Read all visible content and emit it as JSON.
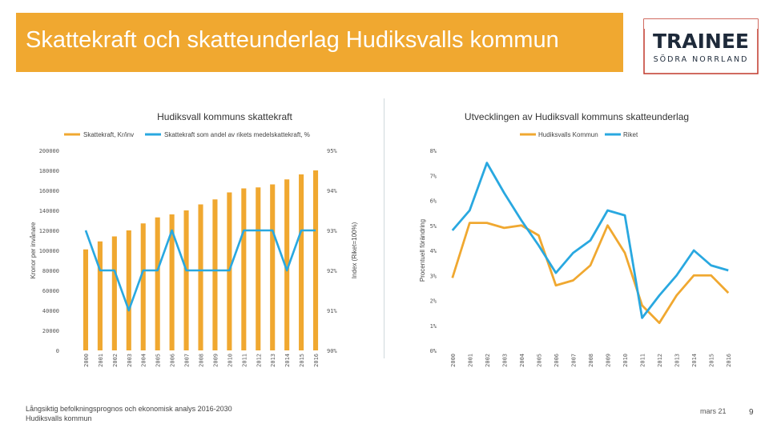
{
  "header": {
    "title": "Skattekraft och skatteunderlag Hudiksvalls kommun"
  },
  "logo": {
    "line1": "TRAINEE",
    "line2": "SÖDRA NORRLAND",
    "accent": "#c0392b"
  },
  "footer": {
    "source_line1": "Långsiktig befolkningsprognos och ekonomisk analys 2016-2030",
    "source_line2": "Hudiksvalls kommun"
  },
  "date": "mars 21",
  "page_number": "9",
  "colors": {
    "orange": "#f0a830",
    "blue": "#29a8e0",
    "banner": "#f0a830"
  },
  "chart_data": [
    {
      "type": "bar",
      "title": "Hudiksvall kommuns skattekraft",
      "categories": [
        "2000",
        "2001",
        "2002",
        "2003",
        "2004",
        "2005",
        "2006",
        "2007",
        "2008",
        "2009",
        "2010",
        "2011",
        "2012",
        "2013",
        "2014",
        "2015",
        "2016"
      ],
      "series": [
        {
          "name": "Skattekraft, Kr/inv",
          "type": "bar",
          "axis": "left",
          "color": "#f0a830",
          "values": [
            101000,
            109000,
            114000,
            120000,
            127000,
            133000,
            136000,
            140000,
            146000,
            151000,
            158000,
            162000,
            163000,
            166000,
            171000,
            176000,
            180000
          ]
        },
        {
          "name": "Skattekraft som andel av rikets medelskattekraft, %",
          "type": "line",
          "axis": "right",
          "color": "#29a8e0",
          "values": [
            93,
            92,
            92,
            91,
            92,
            92,
            93,
            92,
            92,
            92,
            92,
            93,
            93,
            93,
            92,
            93,
            93
          ]
        }
      ],
      "ylabel": "Kronor per invånare",
      "ylabel_right": "Index (Riket=100%)",
      "ylim": [
        0,
        200000
      ],
      "ylim_right": [
        90,
        95
      ],
      "yticks": [
        "0",
        "20000",
        "40000",
        "60000",
        "80000",
        "100000",
        "120000",
        "140000",
        "160000",
        "180000",
        "200000"
      ],
      "yticks_right": [
        "90%",
        "91%",
        "92%",
        "93%",
        "94%",
        "95%"
      ],
      "legend_position": "top-left",
      "grid": false
    },
    {
      "type": "line",
      "title": "Utvecklingen av Hudiksvall kommuns skatteunderlag",
      "categories": [
        "2000",
        "2001",
        "2002",
        "2003",
        "2004",
        "2005",
        "2006",
        "2007",
        "2008",
        "2009",
        "2010",
        "2011",
        "2012",
        "2013",
        "2014",
        "2015",
        "2016"
      ],
      "series": [
        {
          "name": "Hudiksvalls Kommun",
          "color": "#f0a830",
          "values": [
            2.9,
            5.1,
            5.1,
            4.9,
            5.0,
            4.6,
            2.6,
            2.8,
            3.4,
            5.0,
            3.9,
            1.8,
            1.1,
            2.2,
            3.0,
            3.0,
            2.3
          ]
        },
        {
          "name": "Riket",
          "color": "#29a8e0",
          "values": [
            4.8,
            5.6,
            7.5,
            6.3,
            5.2,
            4.2,
            3.1,
            3.9,
            4.4,
            5.6,
            5.4,
            1.3,
            2.2,
            3.0,
            4.0,
            3.4,
            3.2
          ]
        }
      ],
      "ylabel": "Procentuell förändring",
      "ylim": [
        0,
        8
      ],
      "yticks": [
        "0%",
        "1%",
        "2%",
        "3%",
        "4%",
        "5%",
        "6%",
        "7%",
        "8%"
      ],
      "legend_position": "top-right",
      "grid": false
    }
  ]
}
